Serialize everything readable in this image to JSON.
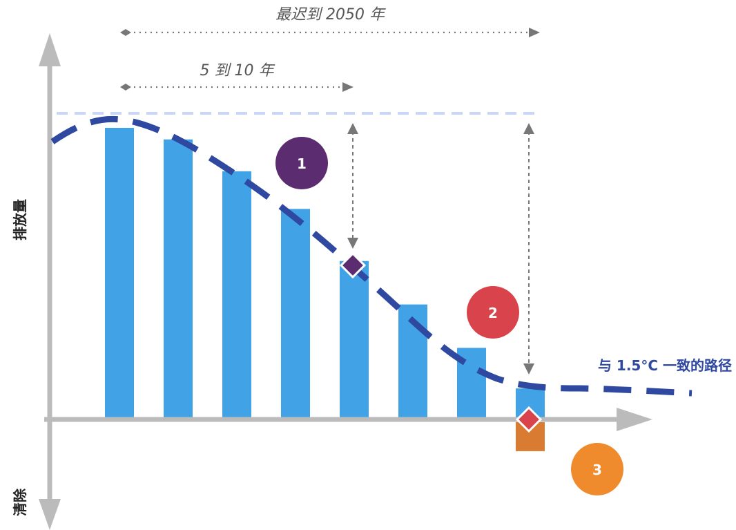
{
  "labels": {
    "top_span": "最迟到 2050 年",
    "inner_span": "5 到 10 年",
    "y_axis_top": "排放量",
    "y_axis_bottom": "清除",
    "path_label": "与 1.5°C 一致的路径"
  },
  "badges": [
    {
      "text": "1",
      "color": "#5B2C6F"
    },
    {
      "text": "2",
      "color": "#D9434B"
    },
    {
      "text": "3",
      "color": "#EF8A2D"
    }
  ],
  "chart_data": {
    "type": "bar",
    "bars": [
      {
        "value": 100,
        "color": "#41A3E6"
      },
      {
        "value": 96,
        "color": "#41A3E6"
      },
      {
        "value": 85,
        "color": "#41A3E6"
      },
      {
        "value": 72,
        "color": "#41A3E6"
      },
      {
        "value": 54,
        "color": "#41A3E6"
      },
      {
        "value": 39,
        "color": "#41A3E6"
      },
      {
        "value": 24,
        "color": "#41A3E6"
      },
      {
        "value": 10,
        "color": "#41A3E6",
        "removal": -10,
        "removal_color": "#D97B30"
      }
    ],
    "colors": {
      "path": "#2F48A0",
      "axis": "#BBBBBB",
      "reference_line": "#C9D6F5",
      "marker_1": "#5B2C6F",
      "marker_2": "#D9434B",
      "span_arrow": "#777777"
    }
  }
}
